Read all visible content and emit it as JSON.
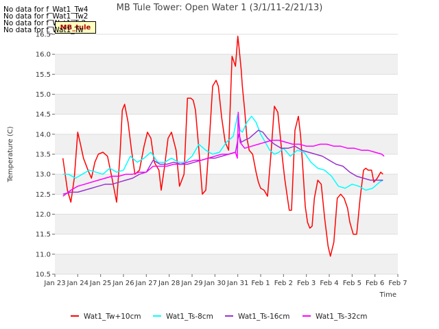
{
  "no_data_messages": [
    "No data for f_Wat1_Tw4",
    "No data for f_Wat1_Tw2",
    "No data for f_Wat1_Ts2",
    "No data for f_Wat1_Tw"
  ],
  "badge": "MB_tule",
  "chart_data": {
    "type": "line",
    "title": "MB Tule Tower: Open Water 1 (3/1/11-2/21/13)",
    "xlabel": "Time",
    "ylabel": "Temperature (C)",
    "x_ticks": [
      "Jan 23",
      "Jan 24",
      "Jan 25",
      "Jan 26",
      "Jan 27",
      "Jan 28",
      "Jan 29",
      "Jan 30",
      "Jan 31",
      "Feb 1",
      "Feb 2",
      "Feb 3",
      "Feb 4",
      "Feb 5",
      "Feb 6",
      "Feb 7"
    ],
    "xlim": [
      0,
      15
    ],
    "ylim": [
      10.5,
      16.5
    ],
    "y_ticks": [
      10.5,
      11.0,
      11.5,
      12.0,
      12.5,
      13.0,
      13.5,
      14.0,
      14.5,
      15.0,
      15.5,
      16.0,
      16.5
    ],
    "grid": true,
    "legend_position": "bottom",
    "series": [
      {
        "name": "Wat1_Tw+10cm",
        "color": "#ff0000",
        "x": [
          0.35,
          0.45,
          0.55,
          0.7,
          0.85,
          1.0,
          1.1,
          1.25,
          1.45,
          1.6,
          1.75,
          1.9,
          2.1,
          2.3,
          2.5,
          2.7,
          2.85,
          2.95,
          3.05,
          3.2,
          3.35,
          3.5,
          3.7,
          3.9,
          4.05,
          4.2,
          4.35,
          4.55,
          4.65,
          4.8,
          4.95,
          5.1,
          5.3,
          5.45,
          5.65,
          5.8,
          5.95,
          6.05,
          6.15,
          6.3,
          6.45,
          6.6,
          6.75,
          6.9,
          7.05,
          7.15,
          7.3,
          7.45,
          7.6,
          7.75,
          7.9,
          8.0,
          8.05,
          8.1,
          8.15,
          8.2,
          8.3,
          8.4,
          8.5,
          8.65,
          8.8,
          8.9,
          9.0,
          9.15,
          9.3,
          9.45,
          9.6,
          9.75,
          9.85,
          9.95,
          10.05,
          10.15,
          10.25,
          10.35,
          10.5,
          10.65,
          10.75,
          10.85,
          10.95,
          11.05,
          11.15,
          11.25,
          11.35,
          11.5,
          11.65,
          11.8,
          11.95,
          12.05,
          12.2,
          12.35,
          12.5,
          12.65,
          12.8,
          12.9,
          13.05,
          13.2,
          13.35,
          13.5,
          13.6,
          13.7,
          13.85,
          13.95,
          14.1,
          14.25,
          14.35
        ],
        "y": [
          13.4,
          13.0,
          12.6,
          12.3,
          12.9,
          14.05,
          13.8,
          13.4,
          13.1,
          12.9,
          13.3,
          13.5,
          13.55,
          13.45,
          12.9,
          12.3,
          13.5,
          14.6,
          14.75,
          14.3,
          13.6,
          13.0,
          13.1,
          13.7,
          14.05,
          13.9,
          13.3,
          13.1,
          12.6,
          13.2,
          13.9,
          14.05,
          13.6,
          12.7,
          13.0,
          14.9,
          14.9,
          14.85,
          14.6,
          13.6,
          12.5,
          12.6,
          13.8,
          15.2,
          15.35,
          15.2,
          14.4,
          13.8,
          13.6,
          15.95,
          15.7,
          16.45,
          16.2,
          15.9,
          15.6,
          15.2,
          14.6,
          13.9,
          13.6,
          13.5,
          13.05,
          12.8,
          12.65,
          12.6,
          12.45,
          13.5,
          14.7,
          14.55,
          14.0,
          13.4,
          12.9,
          12.5,
          12.1,
          12.1,
          14.1,
          14.45,
          13.95,
          13.1,
          12.2,
          11.8,
          11.65,
          11.7,
          12.4,
          12.85,
          12.75,
          11.9,
          11.2,
          10.95,
          11.3,
          12.4,
          12.5,
          12.4,
          12.15,
          11.8,
          11.5,
          11.5,
          12.4,
          13.1,
          13.15,
          13.1,
          13.1,
          12.8,
          12.9,
          13.05,
          13.0
        ]
      },
      {
        "name": "Wat1_Ts-8cm",
        "color": "#00ffff",
        "x": [
          0.35,
          0.6,
          0.9,
          1.2,
          1.5,
          1.8,
          2.1,
          2.4,
          2.7,
          3.0,
          3.3,
          3.6,
          3.9,
          4.2,
          4.5,
          4.8,
          5.1,
          5.4,
          5.7,
          6.0,
          6.3,
          6.6,
          6.9,
          7.2,
          7.5,
          7.8,
          8.0,
          8.1,
          8.2,
          8.4,
          8.6,
          8.8,
          9.0,
          9.2,
          9.4,
          9.6,
          9.8,
          10.0,
          10.3,
          10.6,
          10.9,
          11.2,
          11.5,
          11.8,
          12.1,
          12.4,
          12.7,
          13.0,
          13.3,
          13.6,
          13.9,
          14.2,
          14.35
        ],
        "y": [
          13.0,
          13.0,
          12.9,
          13.0,
          13.1,
          13.05,
          13.0,
          13.15,
          13.05,
          13.1,
          13.45,
          13.3,
          13.4,
          13.55,
          13.3,
          13.3,
          13.4,
          13.3,
          13.3,
          13.45,
          13.75,
          13.6,
          13.5,
          13.55,
          13.8,
          13.95,
          14.5,
          14.1,
          14.05,
          14.3,
          14.45,
          14.3,
          14.0,
          13.8,
          13.6,
          13.5,
          13.55,
          13.65,
          13.45,
          13.6,
          13.55,
          13.3,
          13.15,
          13.1,
          12.95,
          12.7,
          12.65,
          12.75,
          12.7,
          12.6,
          12.65,
          12.8,
          12.85
        ]
      },
      {
        "name": "Wat1_Ts-16cm",
        "color": "#9933cc",
        "x": [
          0.35,
          0.7,
          1.0,
          1.3,
          1.6,
          1.9,
          2.2,
          2.5,
          2.8,
          3.1,
          3.4,
          3.7,
          4.0,
          4.3,
          4.6,
          4.9,
          5.2,
          5.5,
          5.8,
          6.1,
          6.4,
          6.7,
          7.0,
          7.3,
          7.6,
          7.9,
          8.05,
          8.15,
          8.3,
          8.5,
          8.7,
          8.9,
          9.1,
          9.3,
          9.6,
          9.9,
          10.2,
          10.5,
          10.8,
          11.1,
          11.4,
          11.7,
          12.0,
          12.3,
          12.6,
          12.9,
          13.2,
          13.5,
          13.8,
          14.1,
          14.35
        ],
        "y": [
          12.5,
          12.55,
          12.55,
          12.6,
          12.65,
          12.7,
          12.75,
          12.75,
          12.8,
          12.85,
          12.9,
          13.0,
          13.05,
          13.35,
          13.25,
          13.25,
          13.3,
          13.25,
          13.25,
          13.3,
          13.35,
          13.4,
          13.4,
          13.45,
          13.5,
          13.55,
          14.0,
          13.8,
          13.85,
          13.9,
          14.0,
          14.1,
          14.05,
          13.9,
          13.75,
          13.65,
          13.65,
          13.7,
          13.6,
          13.55,
          13.5,
          13.45,
          13.35,
          13.25,
          13.2,
          13.05,
          12.95,
          12.9,
          12.85,
          12.85,
          12.85
        ]
      },
      {
        "name": "Wat1_Ts-32cm",
        "color": "#ff00ff",
        "x": [
          0.35,
          0.7,
          1.0,
          1.3,
          1.6,
          1.9,
          2.2,
          2.5,
          2.8,
          3.1,
          3.4,
          3.7,
          4.0,
          4.3,
          4.6,
          4.9,
          5.2,
          5.5,
          5.8,
          6.1,
          6.4,
          6.7,
          7.0,
          7.3,
          7.6,
          7.9,
          7.98,
          8.02,
          8.1,
          8.3,
          8.6,
          8.9,
          9.2,
          9.5,
          9.8,
          10.1,
          10.4,
          10.7,
          11.0,
          11.3,
          11.6,
          11.9,
          12.2,
          12.5,
          12.8,
          13.1,
          13.4,
          13.7,
          14.0,
          14.3,
          14.4
        ],
        "y": [
          12.45,
          12.6,
          12.7,
          12.75,
          12.8,
          12.85,
          12.9,
          12.95,
          12.95,
          13.0,
          13.0,
          13.05,
          13.05,
          13.2,
          13.2,
          13.2,
          13.25,
          13.25,
          13.3,
          13.35,
          13.35,
          13.4,
          13.45,
          13.5,
          13.5,
          13.55,
          13.4,
          14.55,
          13.8,
          13.65,
          13.7,
          13.75,
          13.8,
          13.85,
          13.85,
          13.8,
          13.75,
          13.75,
          13.7,
          13.7,
          13.75,
          13.75,
          13.7,
          13.7,
          13.65,
          13.65,
          13.6,
          13.6,
          13.55,
          13.5,
          13.45
        ]
      }
    ]
  }
}
